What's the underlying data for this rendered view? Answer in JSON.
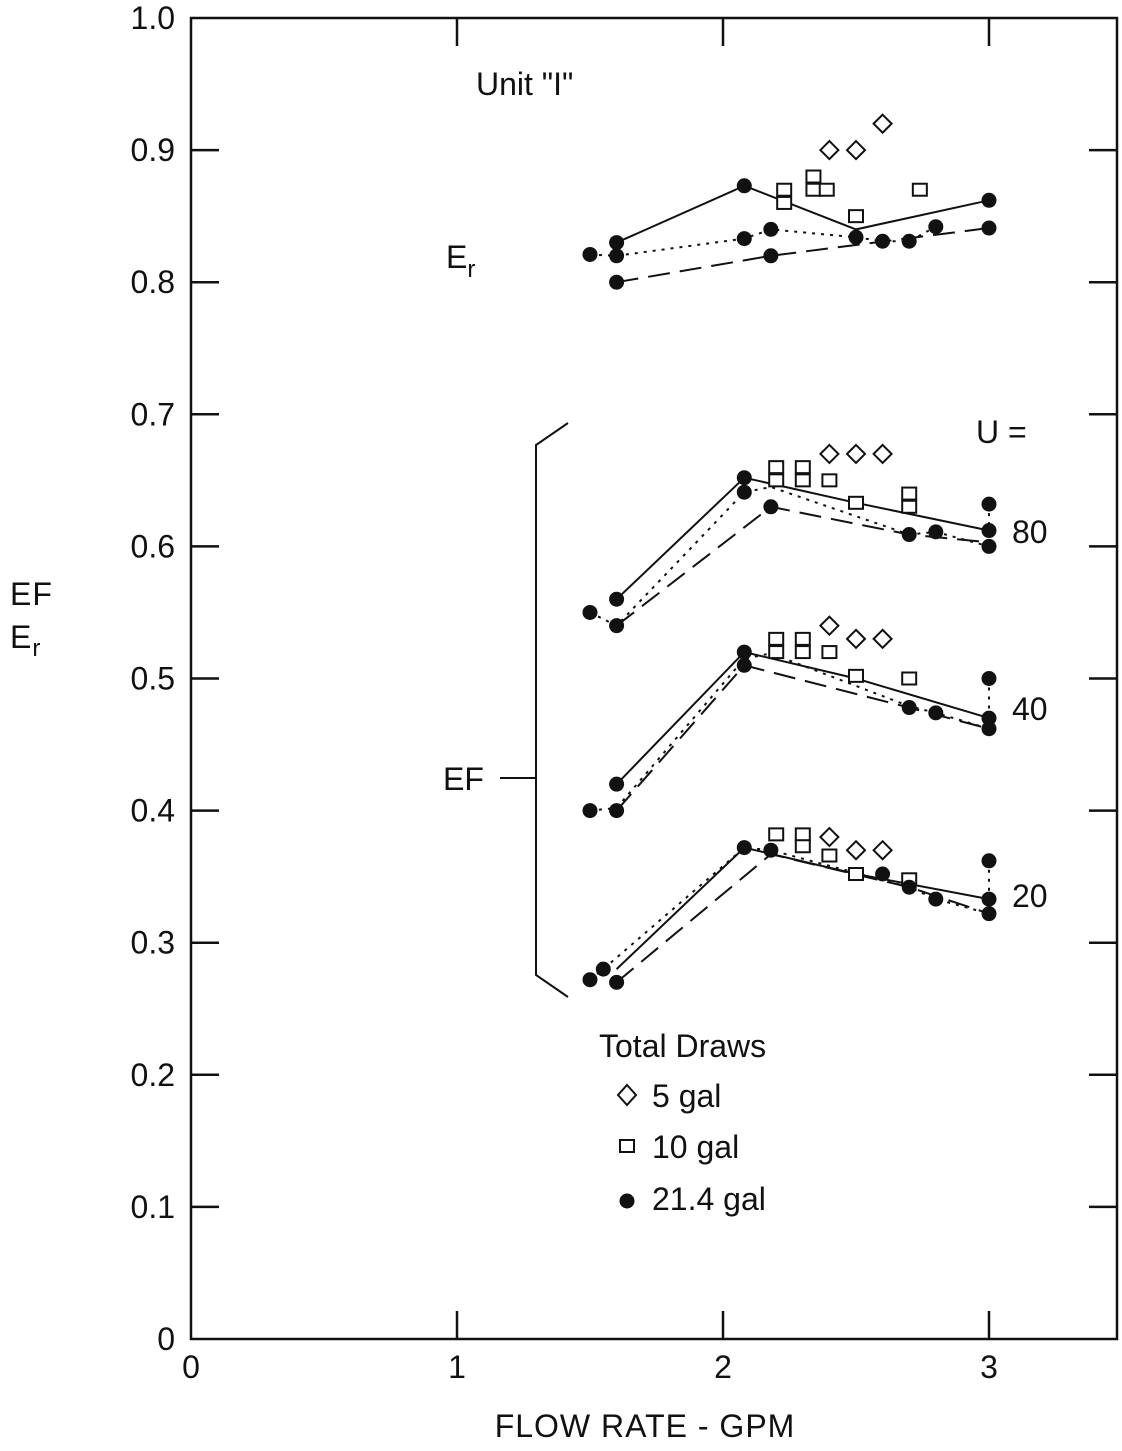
{
  "chart_data": {
    "type": "scatter",
    "xlabel": "FLOW RATE - GPM",
    "ylabel_lines": [
      "EF",
      "Er"
    ],
    "xlim": [
      0,
      3.5
    ],
    "ylim": [
      0,
      1.0
    ],
    "x_ticks": [
      0,
      1,
      2,
      3
    ],
    "x_tick_labels": [
      "0",
      "1",
      "2",
      "3"
    ],
    "y_ticks": [
      0,
      0.1,
      0.2,
      0.3,
      0.4,
      0.5,
      0.6,
      0.7,
      0.8,
      0.9,
      1.0
    ],
    "y_tick_labels": [
      "0",
      "0.1",
      "0.2",
      "0.3",
      "0.4",
      "0.5",
      "0.6",
      "0.7",
      "0.8",
      "0.9",
      "1.0"
    ],
    "grid": false,
    "annotations": {
      "unit": "Unit \"I\"",
      "er_label": "E",
      "er_sub": "r",
      "ef_label": "EF",
      "u_label": "U =",
      "u_values": [
        "80",
        "40",
        "20"
      ]
    },
    "legend": {
      "title": "Total Draws",
      "placement": "bottom-center",
      "entries": [
        {
          "marker": "diamond",
          "label": "5 gal"
        },
        {
          "marker": "square",
          "label": "10 gal"
        },
        {
          "marker": "circle",
          "label": "21.4 gal"
        }
      ]
    },
    "lines": [
      {
        "style": "solid",
        "points": [
          [
            1.6,
            0.83
          ],
          [
            2.08,
            0.873
          ],
          [
            2.5,
            0.84
          ],
          [
            3.0,
            0.862
          ]
        ]
      },
      {
        "style": "dotted",
        "points": [
          [
            1.5,
            0.821
          ],
          [
            1.6,
            0.82
          ],
          [
            2.08,
            0.833
          ],
          [
            2.18,
            0.84
          ],
          [
            2.5,
            0.834
          ],
          [
            2.6,
            0.831
          ],
          [
            2.7,
            0.831
          ],
          [
            2.8,
            0.842
          ]
        ]
      },
      {
        "style": "dashed",
        "points": [
          [
            1.6,
            0.8
          ],
          [
            2.18,
            0.82
          ],
          [
            3.0,
            0.841
          ]
        ]
      },
      {
        "style": "solid",
        "points": [
          [
            1.6,
            0.56
          ],
          [
            2.08,
            0.652
          ],
          [
            2.5,
            0.633
          ],
          [
            3.0,
            0.612
          ]
        ]
      },
      {
        "style": "dotted",
        "points": [
          [
            1.5,
            0.55
          ],
          [
            1.6,
            0.54
          ],
          [
            2.08,
            0.641
          ],
          [
            2.18,
            0.645
          ],
          [
            2.7,
            0.609
          ],
          [
            2.8,
            0.611
          ],
          [
            3.0,
            0.6
          ]
        ]
      },
      {
        "style": "dashed",
        "points": [
          [
            1.6,
            0.54
          ],
          [
            2.18,
            0.63
          ],
          [
            2.7,
            0.609
          ],
          [
            3.0,
            0.603
          ]
        ]
      },
      {
        "style": "dotted",
        "points": [
          [
            3.0,
            0.632
          ],
          [
            3.0,
            0.6
          ]
        ]
      },
      {
        "style": "solid",
        "points": [
          [
            1.6,
            0.42
          ],
          [
            2.08,
            0.52
          ],
          [
            2.5,
            0.5
          ],
          [
            3.0,
            0.47
          ]
        ]
      },
      {
        "style": "dotted",
        "points": [
          [
            1.5,
            0.4
          ],
          [
            1.6,
            0.402
          ],
          [
            2.08,
            0.515
          ],
          [
            2.18,
            0.519
          ],
          [
            2.7,
            0.479
          ],
          [
            2.8,
            0.474
          ],
          [
            3.0,
            0.462
          ]
        ]
      },
      {
        "style": "dashed",
        "points": [
          [
            1.6,
            0.4
          ],
          [
            2.08,
            0.51
          ],
          [
            2.7,
            0.478
          ],
          [
            3.0,
            0.462
          ]
        ]
      },
      {
        "style": "dotted",
        "points": [
          [
            3.0,
            0.5
          ],
          [
            3.0,
            0.462
          ]
        ]
      },
      {
        "style": "solid",
        "points": [
          [
            1.6,
            0.28
          ],
          [
            2.08,
            0.372
          ],
          [
            2.5,
            0.352
          ],
          [
            3.0,
            0.333
          ]
        ]
      },
      {
        "style": "dotted",
        "points": [
          [
            1.5,
            0.272
          ],
          [
            1.55,
            0.28
          ],
          [
            2.08,
            0.372
          ],
          [
            2.18,
            0.37
          ],
          [
            2.7,
            0.342
          ],
          [
            2.8,
            0.333
          ],
          [
            3.0,
            0.322
          ]
        ]
      },
      {
        "style": "dashed",
        "points": [
          [
            1.6,
            0.27
          ],
          [
            2.18,
            0.367
          ],
          [
            2.7,
            0.342
          ],
          [
            3.0,
            0.322
          ]
        ]
      },
      {
        "style": "dotted",
        "points": [
          [
            3.0,
            0.362
          ],
          [
            3.0,
            0.322
          ]
        ]
      }
    ],
    "series": [
      {
        "name": "5 gal",
        "marker": "diamond",
        "points": [
          [
            2.4,
            0.9
          ],
          [
            2.5,
            0.9
          ],
          [
            2.6,
            0.92
          ],
          [
            2.4,
            0.67
          ],
          [
            2.5,
            0.67
          ],
          [
            2.6,
            0.67
          ],
          [
            2.4,
            0.54
          ],
          [
            2.5,
            0.53
          ],
          [
            2.6,
            0.53
          ],
          [
            2.4,
            0.38
          ],
          [
            2.5,
            0.37
          ],
          [
            2.6,
            0.37
          ]
        ]
      },
      {
        "name": "10 gal",
        "marker": "square",
        "points": [
          [
            2.23,
            0.87
          ],
          [
            2.23,
            0.86
          ],
          [
            2.34,
            0.88
          ],
          [
            2.34,
            0.87
          ],
          [
            2.39,
            0.87
          ],
          [
            2.5,
            0.85
          ],
          [
            2.74,
            0.87
          ],
          [
            2.2,
            0.66
          ],
          [
            2.2,
            0.65
          ],
          [
            2.3,
            0.66
          ],
          [
            2.3,
            0.65
          ],
          [
            2.4,
            0.65
          ],
          [
            2.5,
            0.633
          ],
          [
            2.7,
            0.64
          ],
          [
            2.7,
            0.63
          ],
          [
            2.2,
            0.53
          ],
          [
            2.2,
            0.52
          ],
          [
            2.3,
            0.53
          ],
          [
            2.3,
            0.52
          ],
          [
            2.4,
            0.52
          ],
          [
            2.5,
            0.502
          ],
          [
            2.7,
            0.5
          ],
          [
            2.2,
            0.382
          ],
          [
            2.3,
            0.382
          ],
          [
            2.3,
            0.373
          ],
          [
            2.4,
            0.366
          ],
          [
            2.5,
            0.352
          ],
          [
            2.7,
            0.348
          ]
        ]
      },
      {
        "name": "21.4 gal",
        "marker": "circle",
        "points": [
          [
            1.5,
            0.821
          ],
          [
            1.6,
            0.83
          ],
          [
            1.6,
            0.82
          ],
          [
            1.6,
            0.8
          ],
          [
            2.08,
            0.873
          ],
          [
            2.08,
            0.833
          ],
          [
            2.18,
            0.84
          ],
          [
            2.18,
            0.82
          ],
          [
            2.5,
            0.834
          ],
          [
            2.6,
            0.831
          ],
          [
            2.7,
            0.831
          ],
          [
            2.8,
            0.842
          ],
          [
            3.0,
            0.862
          ],
          [
            3.0,
            0.841
          ],
          [
            1.5,
            0.55
          ],
          [
            1.6,
            0.56
          ],
          [
            1.6,
            0.54
          ],
          [
            2.08,
            0.652
          ],
          [
            2.08,
            0.641
          ],
          [
            2.18,
            0.63
          ],
          [
            2.7,
            0.609
          ],
          [
            2.8,
            0.611
          ],
          [
            3.0,
            0.632
          ],
          [
            3.0,
            0.612
          ],
          [
            3.0,
            0.6
          ],
          [
            1.5,
            0.4
          ],
          [
            1.6,
            0.42
          ],
          [
            1.6,
            0.4
          ],
          [
            2.08,
            0.52
          ],
          [
            2.08,
            0.51
          ],
          [
            2.7,
            0.478
          ],
          [
            2.8,
            0.474
          ],
          [
            3.0,
            0.5
          ],
          [
            3.0,
            0.47
          ],
          [
            3.0,
            0.462
          ],
          [
            1.5,
            0.272
          ],
          [
            1.55,
            0.28
          ],
          [
            1.6,
            0.27
          ],
          [
            2.08,
            0.372
          ],
          [
            2.18,
            0.37
          ],
          [
            2.6,
            0.352
          ],
          [
            2.7,
            0.342
          ],
          [
            2.8,
            0.333
          ],
          [
            3.0,
            0.362
          ],
          [
            3.0,
            0.333
          ],
          [
            3.0,
            0.322
          ]
        ]
      }
    ]
  }
}
